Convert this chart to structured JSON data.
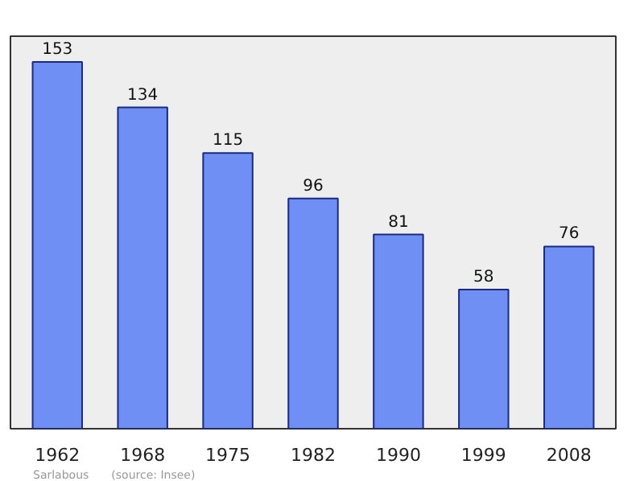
{
  "chart_data": {
    "type": "bar",
    "categories": [
      "1962",
      "1968",
      "1975",
      "1982",
      "1990",
      "1999",
      "2008"
    ],
    "values": [
      153,
      134,
      115,
      96,
      81,
      58,
      76
    ],
    "color": "#6f8ff5",
    "data_labels": true,
    "grid": false,
    "annotations": [
      "Sarlabous",
      "(source: Insee)"
    ]
  }
}
